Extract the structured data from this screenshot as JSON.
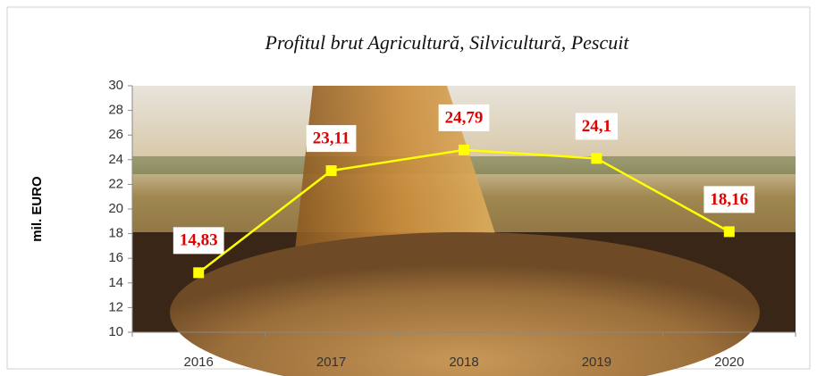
{
  "chart_data": {
    "type": "line",
    "title": "Profitul brut Agricultură, Silvicultură, Pescuit",
    "y_label": "mil. EURO",
    "categories": [
      "2016",
      "2017",
      "2018",
      "2019",
      "2020"
    ],
    "series": [
      {
        "color": "#ffff00",
        "values": [
          14.83,
          23.11,
          24.79,
          24.1,
          18.16
        ],
        "value_labels": [
          "14,83",
          "23,11",
          "24,79",
          "24,1",
          "18,16"
        ]
      }
    ],
    "ylim": [
      10,
      30
    ],
    "yticks": [
      10,
      12,
      14,
      16,
      18,
      20,
      22,
      24,
      26,
      28,
      30
    ]
  }
}
